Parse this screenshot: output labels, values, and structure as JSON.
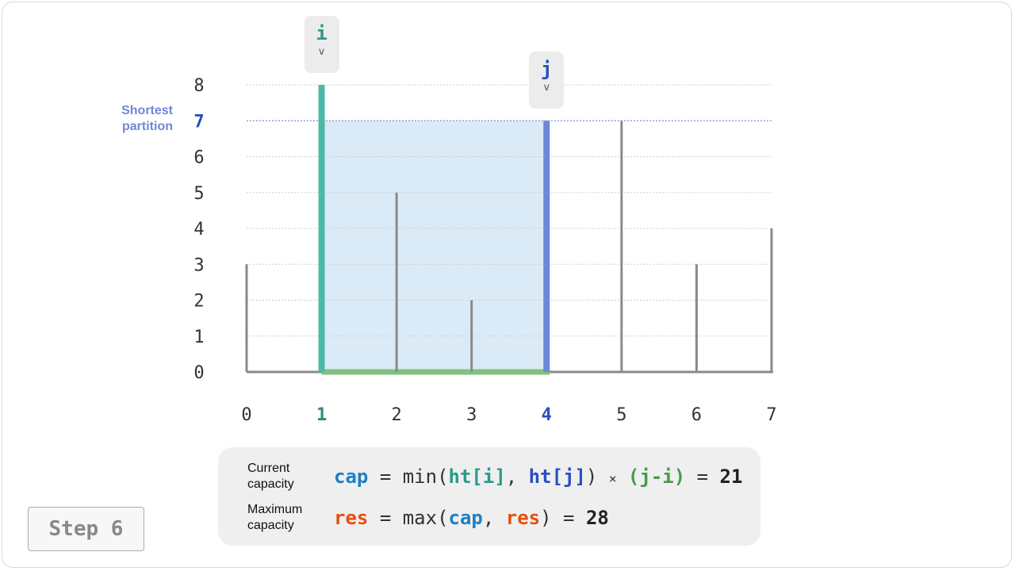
{
  "pointers": {
    "i": {
      "name": "i",
      "arrow": "v",
      "index": 1,
      "color": "#2a9a8a"
    },
    "j": {
      "name": "j",
      "arrow": "v",
      "index": 4,
      "color": "#2a4fbf"
    }
  },
  "note": {
    "line1": "Shortest",
    "line2": "partition"
  },
  "chart_data": {
    "type": "bar",
    "x": [
      0,
      1,
      2,
      3,
      4,
      5,
      6,
      7
    ],
    "x_tick_labels": [
      "0",
      "1",
      "2",
      "3",
      "4",
      "5",
      "6",
      "7"
    ],
    "values": [
      3,
      8,
      5,
      2,
      7,
      7,
      3,
      4
    ],
    "y_ticks": [
      0,
      1,
      2,
      3,
      4,
      5,
      6,
      7,
      8
    ],
    "y_tick_labels": [
      "0",
      "1",
      "2",
      "3",
      "4",
      "5",
      "6",
      "7",
      "8"
    ],
    "ylim": [
      0,
      8
    ],
    "xlim": [
      0,
      7
    ],
    "grid": true,
    "highlight": {
      "left_index": 1,
      "right_index": 4,
      "water_level": 7
    },
    "colors": {
      "bar": "#8a8a8a",
      "left_bar": "#4db8a8",
      "right_bar": "#6f86d8",
      "water": "#dbeaf7",
      "base_highlight": "#82c27e",
      "left_label": "#2a8a7e",
      "right_label": "#2a4fbf"
    }
  },
  "formulas": {
    "current": {
      "label_line1": "Current",
      "label_line2": "capacity",
      "cap": "cap",
      "eq": "=",
      "min_open": "min(",
      "ht_i": "ht[i]",
      "comma": ", ",
      "ht_j": "ht[j]",
      "close": ")",
      "times": "×",
      "j_minus_i": "(j-i)",
      "eq2": "=",
      "result": "21"
    },
    "maximum": {
      "label_line1": "Maximum",
      "label_line2": "capacity",
      "res": "res",
      "eq": "=",
      "max_open": "max(",
      "cap": "cap",
      "comma": ", ",
      "res2": "res",
      "close": ")",
      "eq2": "=",
      "result": "28"
    }
  },
  "step": {
    "label": "Step 6"
  }
}
